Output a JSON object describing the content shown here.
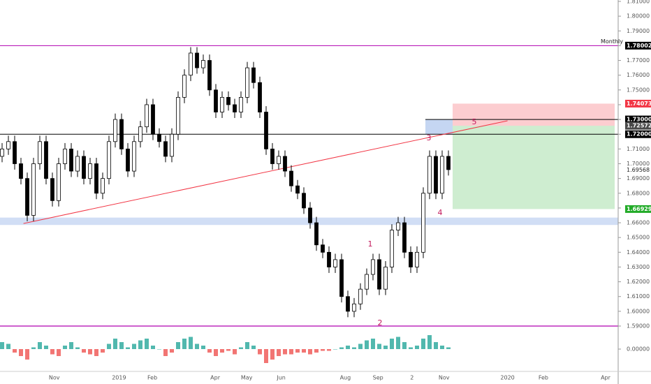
{
  "chart_data": {
    "type": "candlestick",
    "xlim": [
      -0.333,
      98
    ],
    "ylim": [
      1.59,
      1.81
    ],
    "y2lim": [
      -0.012,
      0.012
    ],
    "xticks": [
      {
        "value": 8.3,
        "label": "Nov"
      },
      {
        "value": 18.6,
        "label": "2019"
      },
      {
        "value": 23.9,
        "label": "Feb"
      },
      {
        "value": 33.9,
        "label": "Apr"
      },
      {
        "value": 38.9,
        "label": "May"
      },
      {
        "value": 44.4,
        "label": "Jun"
      },
      {
        "value": 54.6,
        "label": "Aug"
      },
      {
        "value": 59.8,
        "label": "Sep"
      },
      {
        "value": 65.2,
        "label": "2"
      },
      {
        "value": 70.3,
        "label": "Nov"
      },
      {
        "value": 80.4,
        "label": "2020"
      },
      {
        "value": 86.1,
        "label": "Feb"
      },
      {
        "value": 96,
        "label": "Apr"
      }
    ],
    "yticks": [
      {
        "value": 1.81,
        "label": "1.81000"
      },
      {
        "value": 1.8,
        "label": "1.80000"
      },
      {
        "value": 1.79,
        "label": "1.79000"
      },
      {
        "value": 1.78,
        "label": "1.78000"
      },
      {
        "value": 1.77,
        "label": "1.77000"
      },
      {
        "value": 1.76,
        "label": "1.76000"
      },
      {
        "value": 1.75,
        "label": "1.75000"
      },
      {
        "value": 1.74,
        "label": "1.74000"
      },
      {
        "value": 1.73,
        "label": "1.73000"
      },
      {
        "value": 1.72,
        "label": "1.72000"
      },
      {
        "value": 1.71,
        "label": "1.71000"
      },
      {
        "value": 1.7,
        "label": "1.70000"
      },
      {
        "value": 1.69,
        "label": "1.69000"
      },
      {
        "value": 1.68,
        "label": "1.68000"
      },
      {
        "value": 1.67,
        "label": "1.67000"
      },
      {
        "value": 1.66,
        "label": "1.66000"
      },
      {
        "value": 1.65,
        "label": "1.65000"
      },
      {
        "value": 1.64,
        "label": "1.64000"
      },
      {
        "value": 1.63,
        "label": "1.63000"
      },
      {
        "value": 1.62,
        "label": "1.62000"
      },
      {
        "value": 1.61,
        "label": "1.61000"
      },
      {
        "value": 1.6,
        "label": "1.60000"
      },
      {
        "value": 1.59,
        "label": "1.59000"
      }
    ],
    "y2ticks": [
      {
        "value": 0,
        "label": "0.00000"
      }
    ],
    "open": [
      1.705,
      1.71,
      1.715,
      1.7,
      1.69,
      1.665,
      1.7,
      1.715,
      1.69,
      1.675,
      1.7,
      1.71,
      1.695,
      1.705,
      1.69,
      1.7,
      1.68,
      1.69,
      1.715,
      1.73,
      1.71,
      1.695,
      1.715,
      1.725,
      1.74,
      1.72,
      1.715,
      1.705,
      1.72,
      1.745,
      1.76,
      1.775,
      1.765,
      1.77,
      1.75,
      1.735,
      1.745,
      1.74,
      1.735,
      1.745,
      1.765,
      1.755,
      1.735,
      1.71,
      1.7,
      1.705,
      1.695,
      1.685,
      1.68,
      1.67,
      1.66,
      1.645,
      1.64,
      1.63,
      1.635,
      1.61,
      1.6,
      1.605,
      1.615,
      1.625,
      1.635,
      1.615,
      1.63,
      1.655,
      1.66,
      1.64,
      1.63,
      1.64,
      1.68,
      1.705,
      1.68,
      1.705
    ],
    "high": [
      1.714,
      1.719,
      1.719,
      1.704,
      1.694,
      1.704,
      1.719,
      1.719,
      1.694,
      1.704,
      1.714,
      1.714,
      1.709,
      1.709,
      1.704,
      1.704,
      1.694,
      1.719,
      1.734,
      1.734,
      1.714,
      1.719,
      1.729,
      1.744,
      1.744,
      1.724,
      1.719,
      1.724,
      1.749,
      1.764,
      1.779,
      1.779,
      1.774,
      1.774,
      1.754,
      1.749,
      1.749,
      1.744,
      1.749,
      1.769,
      1.769,
      1.759,
      1.739,
      1.714,
      1.709,
      1.709,
      1.699,
      1.689,
      1.684,
      1.674,
      1.664,
      1.649,
      1.644,
      1.639,
      1.639,
      1.614,
      1.609,
      1.619,
      1.629,
      1.639,
      1.639,
      1.634,
      1.659,
      1.664,
      1.664,
      1.644,
      1.644,
      1.684,
      1.709,
      1.709,
      1.709,
      1.709
    ],
    "low": [
      1.701,
      1.706,
      1.696,
      1.686,
      1.661,
      1.661,
      1.696,
      1.686,
      1.671,
      1.671,
      1.696,
      1.691,
      1.691,
      1.686,
      1.686,
      1.676,
      1.676,
      1.686,
      1.711,
      1.706,
      1.691,
      1.691,
      1.711,
      1.721,
      1.716,
      1.711,
      1.701,
      1.701,
      1.716,
      1.741,
      1.756,
      1.761,
      1.761,
      1.746,
      1.731,
      1.731,
      1.736,
      1.731,
      1.731,
      1.741,
      1.751,
      1.731,
      1.706,
      1.696,
      1.696,
      1.691,
      1.681,
      1.676,
      1.666,
      1.656,
      1.641,
      1.636,
      1.626,
      1.626,
      1.606,
      1.596,
      1.596,
      1.601,
      1.611,
      1.621,
      1.611,
      1.611,
      1.626,
      1.651,
      1.636,
      1.626,
      1.626,
      1.636,
      1.676,
      1.676,
      1.676,
      1.692
    ],
    "close": [
      1.71,
      1.715,
      1.7,
      1.69,
      1.665,
      1.7,
      1.715,
      1.69,
      1.675,
      1.7,
      1.71,
      1.695,
      1.705,
      1.69,
      1.7,
      1.68,
      1.69,
      1.715,
      1.73,
      1.71,
      1.695,
      1.715,
      1.725,
      1.74,
      1.72,
      1.715,
      1.705,
      1.72,
      1.745,
      1.76,
      1.775,
      1.765,
      1.77,
      1.75,
      1.735,
      1.745,
      1.74,
      1.735,
      1.745,
      1.765,
      1.755,
      1.735,
      1.71,
      1.7,
      1.705,
      1.695,
      1.685,
      1.68,
      1.67,
      1.66,
      1.645,
      1.64,
      1.63,
      1.635,
      1.61,
      1.6,
      1.605,
      1.615,
      1.625,
      1.635,
      1.615,
      1.63,
      1.655,
      1.66,
      1.64,
      1.63,
      1.64,
      1.68,
      1.705,
      1.68,
      1.705,
      1.696
    ],
    "macd": [
      0.004,
      0.003,
      -0.002,
      -0.004,
      -0.006,
      0.001,
      0.004,
      0.002,
      -0.003,
      -0.004,
      0.002,
      0.004,
      0.001,
      -0.002,
      -0.003,
      -0.004,
      -0.002,
      0.003,
      0.006,
      0.004,
      0.001,
      0.003,
      0.005,
      0.006,
      0.002,
      0.0,
      -0.004,
      -0.002,
      0.004,
      0.006,
      0.007,
      0.003,
      0.002,
      -0.002,
      -0.004,
      -0.002,
      -0.001,
      -0.003,
      0.001,
      0.004,
      0.002,
      -0.003,
      -0.008,
      -0.006,
      -0.004,
      -0.003,
      -0.003,
      -0.002,
      -0.002,
      -0.003,
      -0.002,
      -0.001,
      -0.001,
      0.0,
      0.001,
      0.002,
      0.001,
      0.003,
      0.005,
      0.006,
      0.003,
      0.002,
      0.006,
      0.007,
      0.004,
      0.001,
      0.002,
      0.006,
      0.008,
      0.004,
      0.002,
      0.001
    ],
    "levels": [
      {
        "value": 1.78002,
        "label": "1.78002",
        "color": "#000000",
        "line": "#b000b0",
        "note": "Monthly"
      },
      {
        "value": 1.74073,
        "label": "1.74073",
        "color": "#f23645"
      },
      {
        "value": 1.73,
        "label": "1.73000",
        "color": "#000000",
        "line": "#000000"
      },
      {
        "value": 1.72572,
        "label": "1.72572",
        "color": "#4a4a4a"
      },
      {
        "value": 1.72,
        "label": "1.72000",
        "color": "#000000",
        "line": "#000000"
      },
      {
        "value": 1.69568,
        "label": "1.69568"
      },
      {
        "value": 1.66929,
        "label": "1.66929",
        "color": "#22ab28"
      }
    ],
    "bottom_line": {
      "value": 1.59,
      "color": "#b000b0"
    },
    "zone": {
      "from": 1.6585,
      "to": 1.6635,
      "color": "#c5d6f2"
    },
    "trendline": {
      "from": [
        3.4,
        1.6595
      ],
      "to": [
        80.4,
        1.7291
      ],
      "color": "#f23645"
    },
    "annotations": [
      "1",
      "2",
      "3",
      "4",
      "5"
    ]
  }
}
